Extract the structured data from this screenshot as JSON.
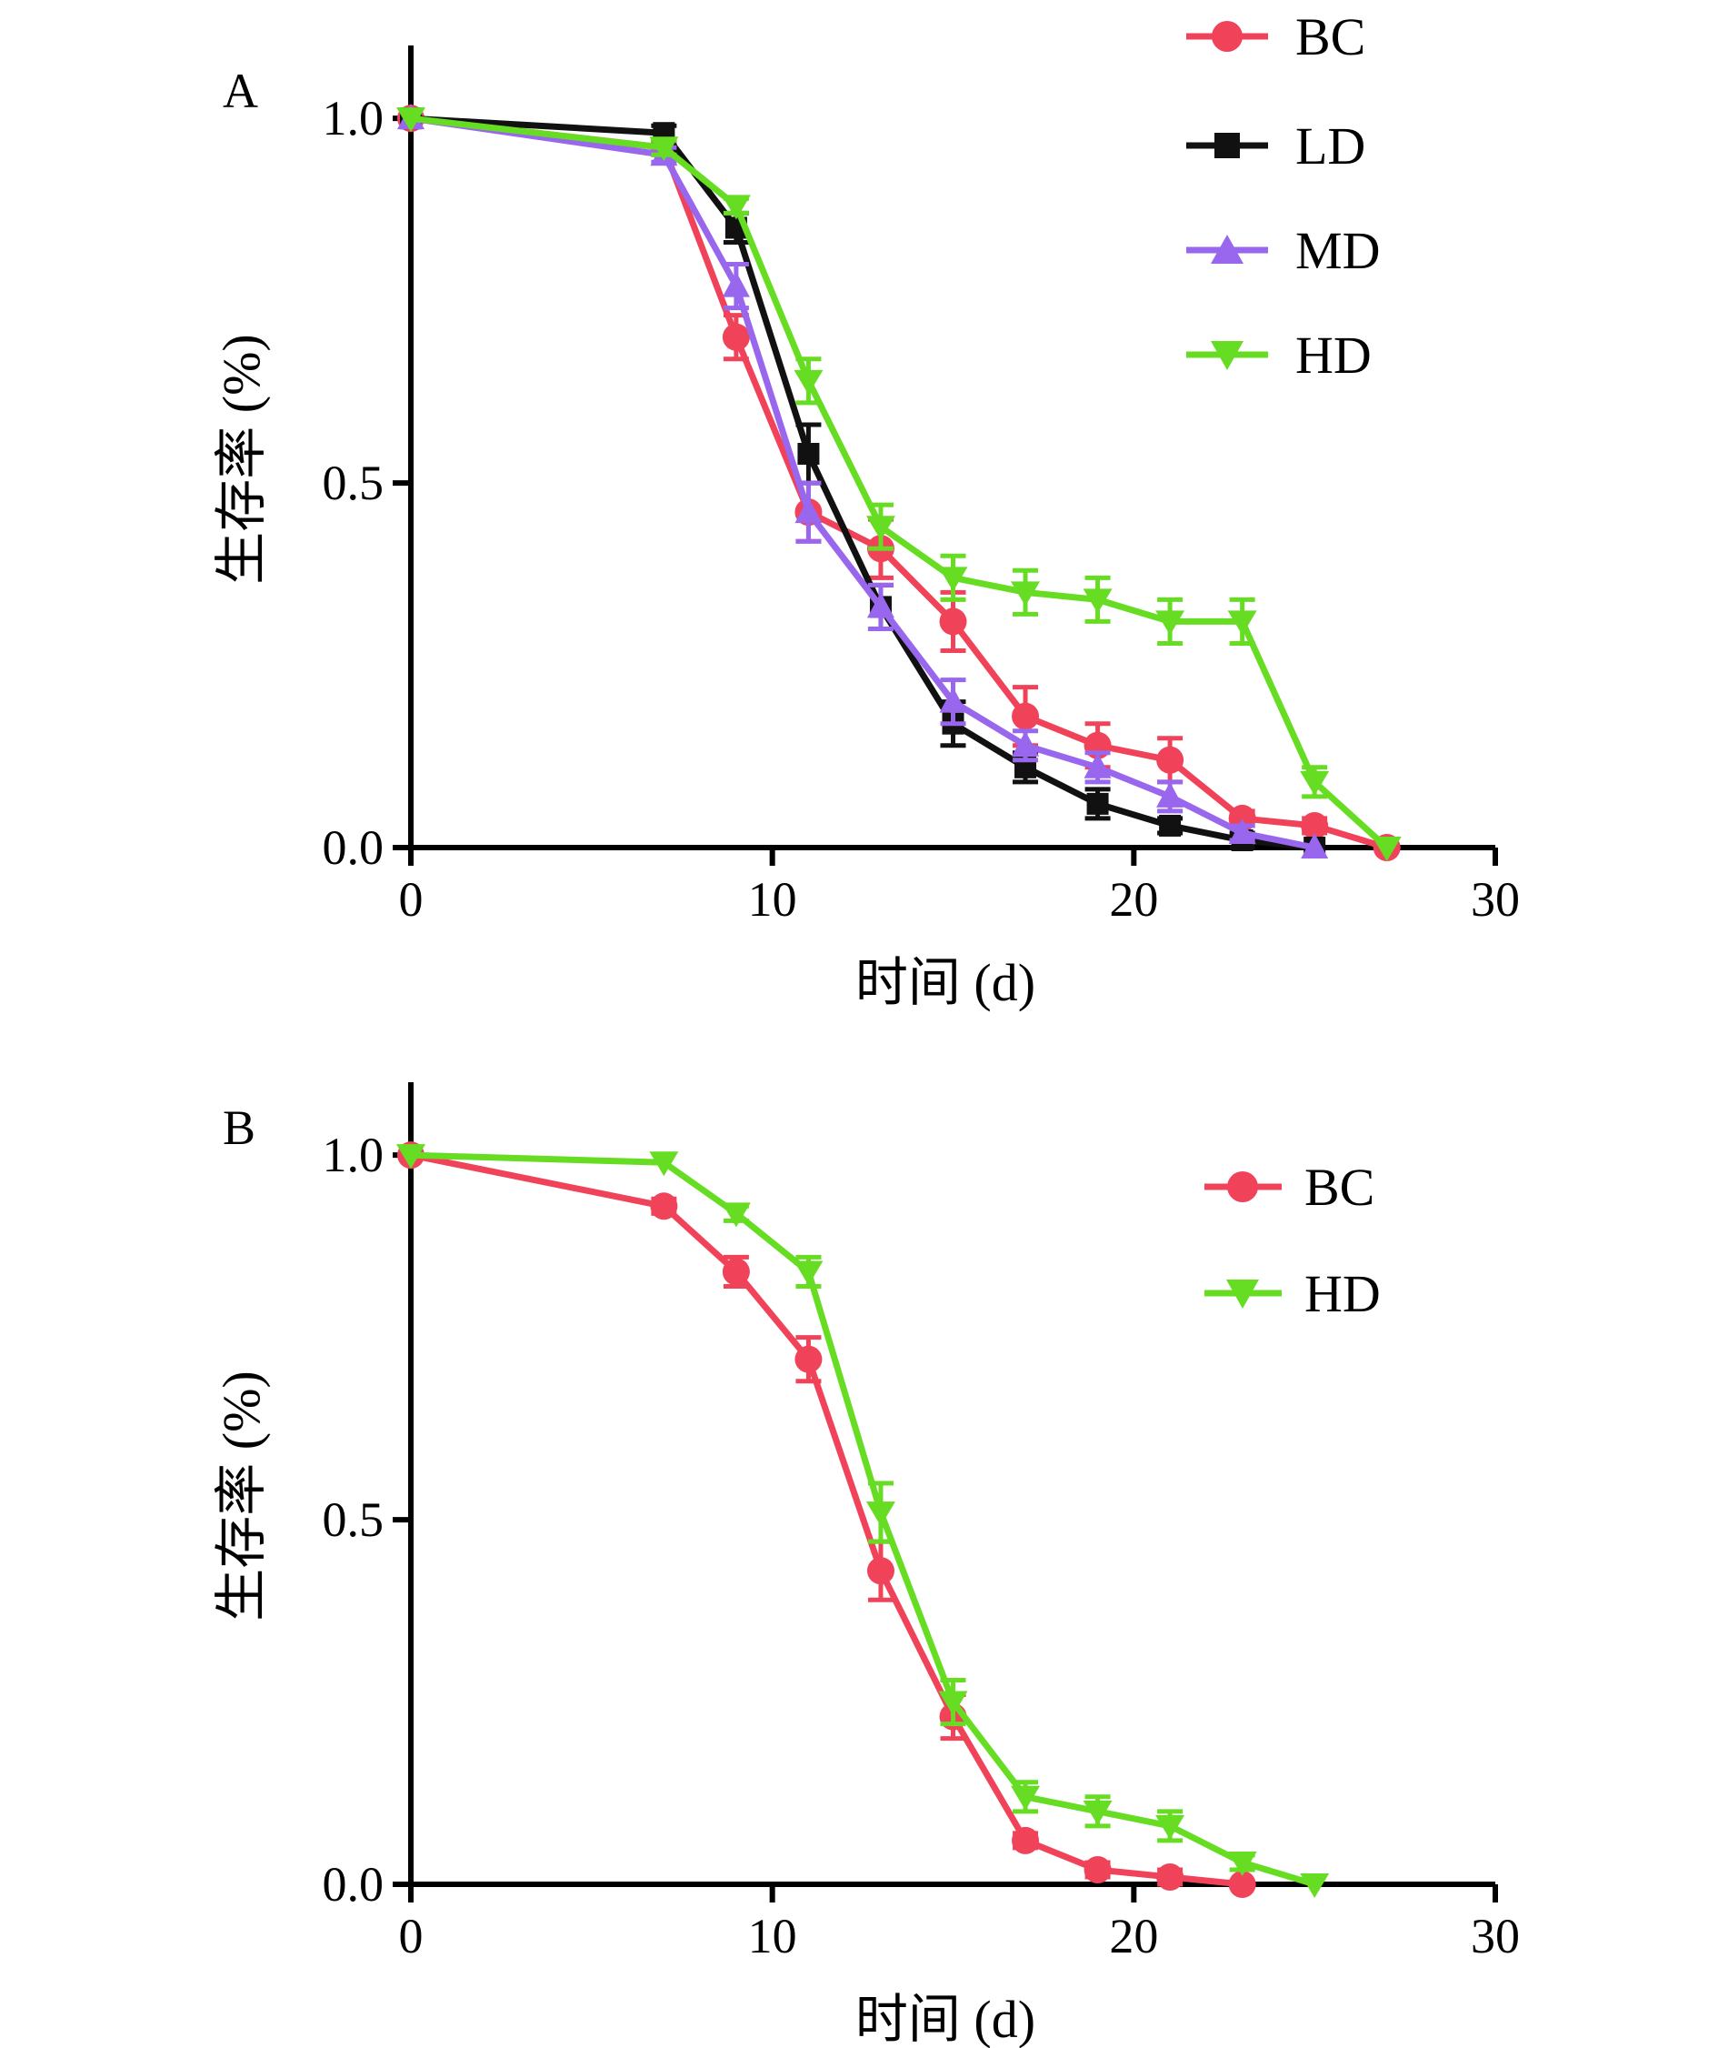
{
  "colors": {
    "BC": "#f0435a",
    "LD": "#111111",
    "MD": "#9966ee",
    "HD": "#66dd22",
    "axis": "#000000"
  },
  "chart_data": [
    {
      "type": "line",
      "panel_label": "A",
      "xlabel": "时间 (d)",
      "ylabel": "生存率 (%)",
      "xlim": [
        0,
        30
      ],
      "ylim": [
        0,
        1.1
      ],
      "xticks": [
        0,
        10,
        20,
        30
      ],
      "yticks": [
        0.0,
        0.5,
        1.0
      ],
      "xtick_labels": [
        "0",
        "10",
        "20",
        "30"
      ],
      "ytick_labels": [
        "0.0",
        "0.5",
        "1.0"
      ],
      "grid": false,
      "legend_position": "top-right",
      "series": [
        {
          "name": "BC",
          "marker": "circle",
          "color": "#f0435a",
          "x": [
            0,
            7,
            9,
            11,
            13,
            15,
            17,
            19,
            21,
            23,
            25,
            27
          ],
          "y": [
            1.0,
            0.96,
            0.7,
            0.46,
            0.41,
            0.31,
            0.18,
            0.14,
            0.12,
            0.04,
            0.03,
            0.0
          ],
          "err": [
            0,
            0.01,
            0.03,
            0.04,
            0.04,
            0.04,
            0.04,
            0.03,
            0.03,
            0.01,
            0.01,
            0
          ]
        },
        {
          "name": "LD",
          "marker": "square",
          "color": "#111111",
          "x": [
            0,
            7,
            9,
            11,
            13,
            15,
            17,
            19,
            21,
            23,
            25
          ],
          "y": [
            1.0,
            0.98,
            0.85,
            0.54,
            0.33,
            0.17,
            0.11,
            0.06,
            0.03,
            0.01,
            0.0
          ],
          "err": [
            0,
            0.01,
            0.02,
            0.04,
            0.03,
            0.03,
            0.02,
            0.02,
            0.01,
            0.01,
            0
          ]
        },
        {
          "name": "MD",
          "marker": "triangle-up",
          "color": "#9966ee",
          "x": [
            0,
            7,
            9,
            11,
            13,
            15,
            17,
            19,
            21,
            23,
            25
          ],
          "y": [
            1.0,
            0.95,
            0.77,
            0.46,
            0.33,
            0.2,
            0.14,
            0.11,
            0.07,
            0.02,
            0.0
          ],
          "err": [
            0,
            0.01,
            0.03,
            0.04,
            0.03,
            0.03,
            0.02,
            0.02,
            0.02,
            0.01,
            0
          ]
        },
        {
          "name": "HD",
          "marker": "triangle-down",
          "color": "#66dd22",
          "x": [
            0,
            7,
            9,
            11,
            13,
            15,
            17,
            19,
            21,
            23,
            25,
            27
          ],
          "y": [
            1.0,
            0.96,
            0.88,
            0.64,
            0.44,
            0.37,
            0.35,
            0.34,
            0.31,
            0.31,
            0.09,
            0.0
          ],
          "err": [
            0,
            0.01,
            0.01,
            0.03,
            0.03,
            0.03,
            0.03,
            0.03,
            0.03,
            0.03,
            0.02,
            0
          ]
        }
      ]
    },
    {
      "type": "line",
      "panel_label": "B",
      "xlabel": "时间 (d)",
      "ylabel": "生存率 (%)",
      "xlim": [
        0,
        30
      ],
      "ylim": [
        0,
        1.1
      ],
      "xticks": [
        0,
        10,
        20,
        30
      ],
      "yticks": [
        0.0,
        0.5,
        1.0
      ],
      "xtick_labels": [
        "0",
        "10",
        "20",
        "30"
      ],
      "ytick_labels": [
        "0.0",
        "0.5",
        "1.0"
      ],
      "grid": false,
      "legend_position": "top-right",
      "series": [
        {
          "name": "BC",
          "marker": "circle",
          "color": "#f0435a",
          "x": [
            0,
            7,
            9,
            11,
            13,
            15,
            17,
            19,
            21,
            23
          ],
          "y": [
            1.0,
            0.93,
            0.84,
            0.72,
            0.43,
            0.23,
            0.06,
            0.02,
            0.01,
            0.0
          ],
          "err": [
            0,
            0.01,
            0.02,
            0.03,
            0.04,
            0.03,
            0.01,
            0.01,
            0.01,
            0
          ]
        },
        {
          "name": "HD",
          "marker": "triangle-down",
          "color": "#66dd22",
          "x": [
            0,
            7,
            9,
            11,
            13,
            15,
            17,
            19,
            21,
            23,
            25
          ],
          "y": [
            1.0,
            0.99,
            0.92,
            0.84,
            0.51,
            0.25,
            0.12,
            0.1,
            0.08,
            0.03,
            0.0
          ],
          "err": [
            0,
            0,
            0.01,
            0.02,
            0.04,
            0.03,
            0.02,
            0.02,
            0.02,
            0.01,
            0
          ]
        }
      ]
    }
  ]
}
